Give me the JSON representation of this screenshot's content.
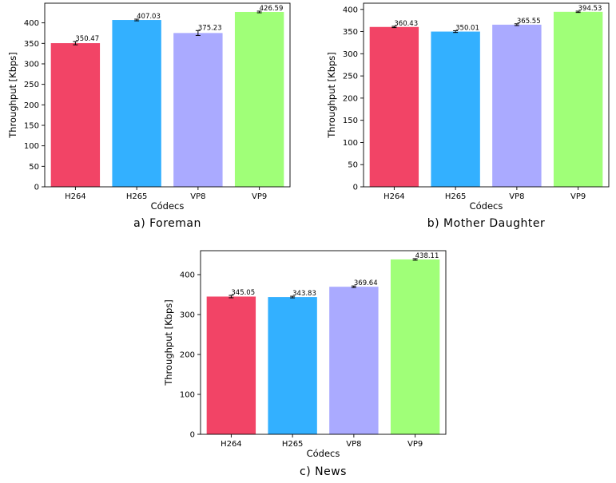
{
  "chart_data": [
    {
      "type": "bar",
      "caption": "a) Foreman",
      "categories": [
        "H264",
        "H265",
        "VP8",
        "VP9"
      ],
      "values": [
        350.47,
        407.03,
        375.23,
        426.59
      ],
      "value_labels": [
        "350.47",
        "407.03",
        "375.23",
        "426.59"
      ],
      "errors": [
        4,
        2,
        6,
        2
      ],
      "colors": [
        "#f24466",
        "#33b0ff",
        "#aaaaff",
        "#a0ff78"
      ],
      "xlabel": "Códecs",
      "ylabel": "Throughput [Kbps]",
      "ylim": [
        0,
        448
      ],
      "yticks": [
        0,
        50,
        100,
        150,
        200,
        250,
        300,
        350,
        400
      ],
      "grid": false
    },
    {
      "type": "bar",
      "caption": "b) Mother Daughter",
      "categories": [
        "H264",
        "H265",
        "VP8",
        "VP9"
      ],
      "values": [
        360.43,
        350.01,
        365.55,
        394.53
      ],
      "value_labels": [
        "360.43",
        "350.01",
        "365.55",
        "394.53"
      ],
      "errors": [
        1.5,
        2,
        2,
        1.5
      ],
      "colors": [
        "#f24466",
        "#33b0ff",
        "#aaaaff",
        "#a0ff78"
      ],
      "xlabel": "Códecs",
      "ylabel": "Throughput [Kbps]",
      "ylim": [
        0,
        414
      ],
      "yticks": [
        0,
        50,
        100,
        150,
        200,
        250,
        300,
        350,
        400
      ],
      "grid": false
    },
    {
      "type": "bar",
      "caption": "c) News",
      "categories": [
        "H264",
        "H265",
        "VP8",
        "VP9"
      ],
      "values": [
        345.05,
        343.83,
        369.64,
        438.11
      ],
      "value_labels": [
        "345.05",
        "343.83",
        "369.64",
        "438.11"
      ],
      "errors": [
        3,
        2,
        2,
        2
      ],
      "colors": [
        "#f24466",
        "#33b0ff",
        "#aaaaff",
        "#a0ff78"
      ],
      "xlabel": "Códecs",
      "ylabel": "Throughput [Kbps]",
      "ylim": [
        0,
        460
      ],
      "yticks": [
        0,
        100,
        200,
        300,
        400
      ],
      "grid": false
    }
  ]
}
